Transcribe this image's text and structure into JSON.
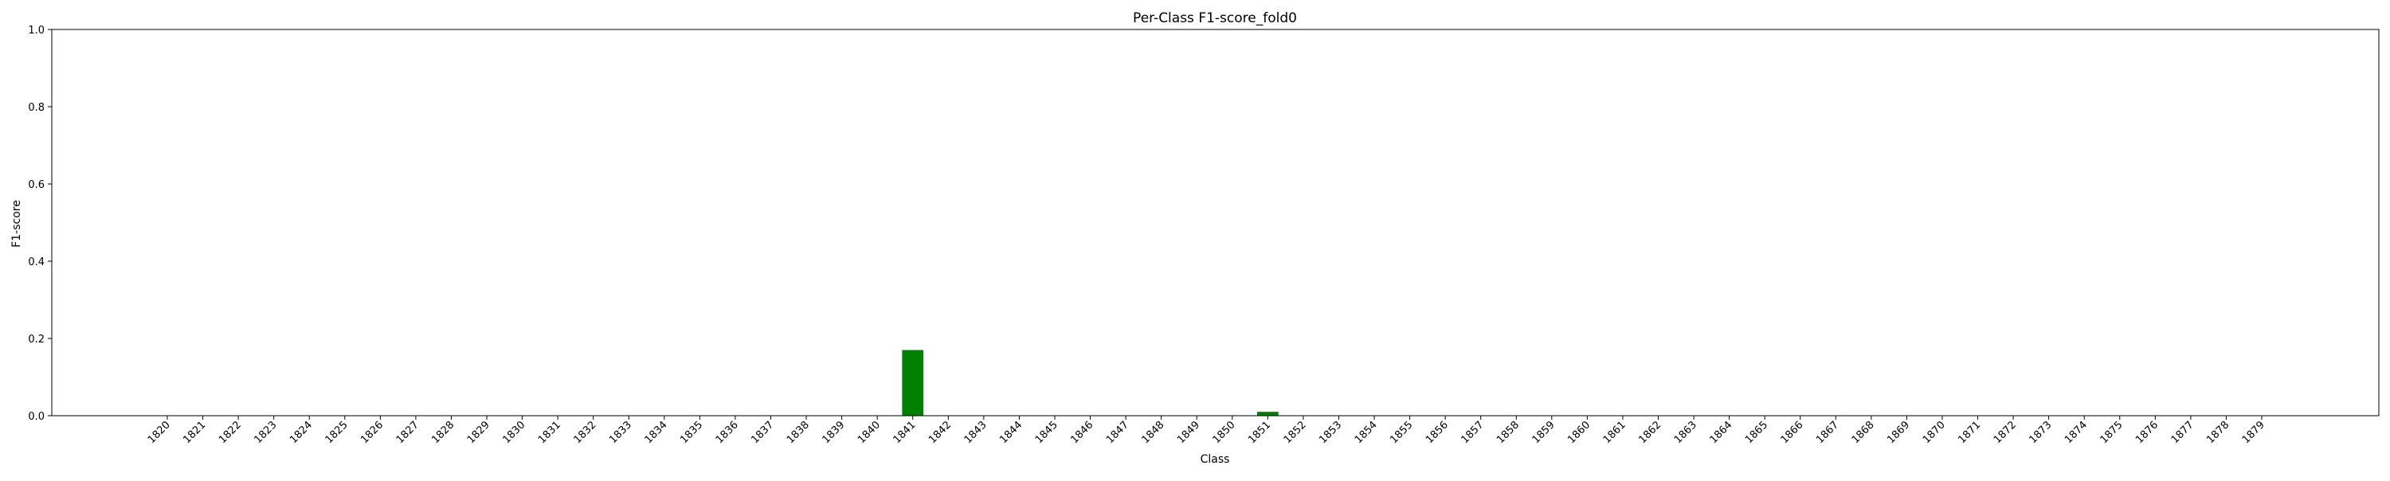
{
  "chart_data": {
    "type": "bar",
    "title": "Per-Class F1-score_fold0",
    "xlabel": "Class",
    "ylabel": "F1-score",
    "ylim": [
      0,
      1
    ],
    "yticks": [
      "0.0",
      "0.2",
      "0.4",
      "0.6",
      "0.8",
      "1.0"
    ],
    "grid": false,
    "categories": [
      "1820",
      "1821",
      "1822",
      "1823",
      "1824",
      "1825",
      "1826",
      "1827",
      "1828",
      "1829",
      "1830",
      "1831",
      "1832",
      "1833",
      "1834",
      "1835",
      "1836",
      "1837",
      "1838",
      "1839",
      "1840",
      "1841",
      "1842",
      "1843",
      "1844",
      "1845",
      "1846",
      "1847",
      "1848",
      "1849",
      "1850",
      "1851",
      "1852",
      "1853",
      "1854",
      "1855",
      "1856",
      "1857",
      "1858",
      "1859",
      "1860",
      "1861",
      "1862",
      "1863",
      "1864",
      "1865",
      "1866",
      "1867",
      "1868",
      "1869",
      "1870",
      "1871",
      "1872",
      "1873",
      "1874",
      "1875",
      "1876",
      "1877",
      "1878",
      "1879"
    ],
    "values": [
      0,
      0,
      0,
      0,
      0,
      0,
      0,
      0,
      0,
      0,
      0,
      0,
      0,
      0,
      0,
      0,
      0,
      0,
      0,
      0,
      0,
      0.17,
      0,
      0,
      0,
      0,
      0,
      0,
      0,
      0,
      0,
      0.01,
      0,
      0,
      0,
      0,
      0,
      0,
      0,
      0,
      0,
      0,
      0,
      0,
      0,
      0,
      0,
      0,
      0,
      0,
      0,
      0,
      0,
      0,
      0,
      0,
      0,
      0,
      0,
      0
    ],
    "bar_color": "#008000"
  }
}
